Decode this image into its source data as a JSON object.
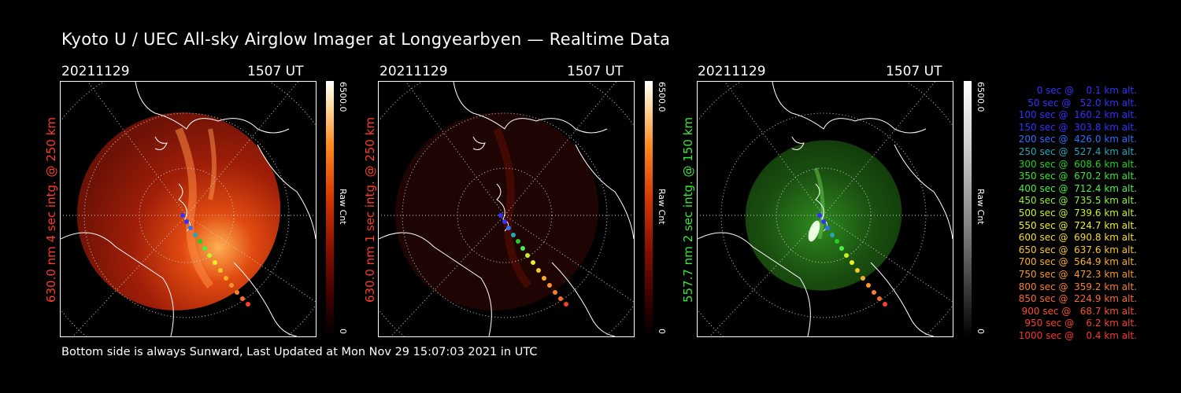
{
  "header": {
    "title": "Kyoto U / UEC All-sky Airglow Imager at Longyearbyen — Realtime Data"
  },
  "footer": {
    "text": "Bottom side is always Sunward, Last Updated at Mon Nov 29 15:07:03 2021 in UTC"
  },
  "panels": [
    {
      "date": "20211129",
      "time": "1507 UT",
      "ylabel": "630.0 nm 4 sec intg. @ 250 km",
      "label_color": "#ff3a28",
      "cbar_max": "6500.0",
      "cbar_min": "0",
      "cbar_unit": "Raw Cnt",
      "glow_color": "red",
      "glow_intensity": "strong"
    },
    {
      "date": "20211129",
      "time": "1507 UT",
      "ylabel": "630.0 nm 1 sec intg. @ 250 km",
      "label_color": "#ff3a28",
      "cbar_max": "6500.0",
      "cbar_min": "0",
      "cbar_unit": "Raw Cnt",
      "glow_color": "red",
      "glow_intensity": "weak"
    },
    {
      "date": "20211129",
      "time": "1507 UT",
      "ylabel": "557.7 nm 2 sec intg. @ 150 km",
      "label_color": "#38e838",
      "cbar_max": "6500.0",
      "cbar_min": "0",
      "cbar_unit": "Raw Cnt",
      "glow_color": "green",
      "glow_intensity": "medium"
    }
  ],
  "legend": [
    {
      "text": "0 sec @    0.1 km alt.",
      "color": "#3232ff"
    },
    {
      "text": "50 sec @   52.0 km alt.",
      "color": "#3232ff"
    },
    {
      "text": "100 sec @  160.2 km alt.",
      "color": "#3232ff"
    },
    {
      "text": "150 sec @  303.8 km alt.",
      "color": "#3232ff"
    },
    {
      "text": "200 sec @  426.0 km alt.",
      "color": "#2f6dff"
    },
    {
      "text": "250 sec @  527.4 km alt.",
      "color": "#20a8b8"
    },
    {
      "text": "300 sec @  608.6 km alt.",
      "color": "#20d020"
    },
    {
      "text": "350 sec @  670.2 km alt.",
      "color": "#32e632"
    },
    {
      "text": "400 sec @  712.4 km alt.",
      "color": "#48f048"
    },
    {
      "text": "450 sec @  735.5 km alt.",
      "color": "#8ef03a"
    },
    {
      "text": "500 sec @  739.6 km alt.",
      "color": "#c8f02a"
    },
    {
      "text": "550 sec @  724.7 km alt.",
      "color": "#f0f028"
    },
    {
      "text": "600 sec @  690.8 km alt.",
      "color": "#f8de28"
    },
    {
      "text": "650 sec @  637.6 km alt.",
      "color": "#f8c828"
    },
    {
      "text": "700 sec @  564.9 km alt.",
      "color": "#f8b028"
    },
    {
      "text": "750 sec @  472.3 km alt.",
      "color": "#f89628"
    },
    {
      "text": "800 sec @  359.2 km alt.",
      "color": "#f8802a"
    },
    {
      "text": "850 sec @  224.9 km alt.",
      "color": "#f86a2a"
    },
    {
      "text": "900 sec @   68.7 km alt.",
      "color": "#f8502a"
    },
    {
      "text": "950 sec @    6.2 km alt.",
      "color": "#f8402a"
    },
    {
      "text": "1000 sec @    0.4 km alt.",
      "color": "#f83428"
    }
  ]
}
